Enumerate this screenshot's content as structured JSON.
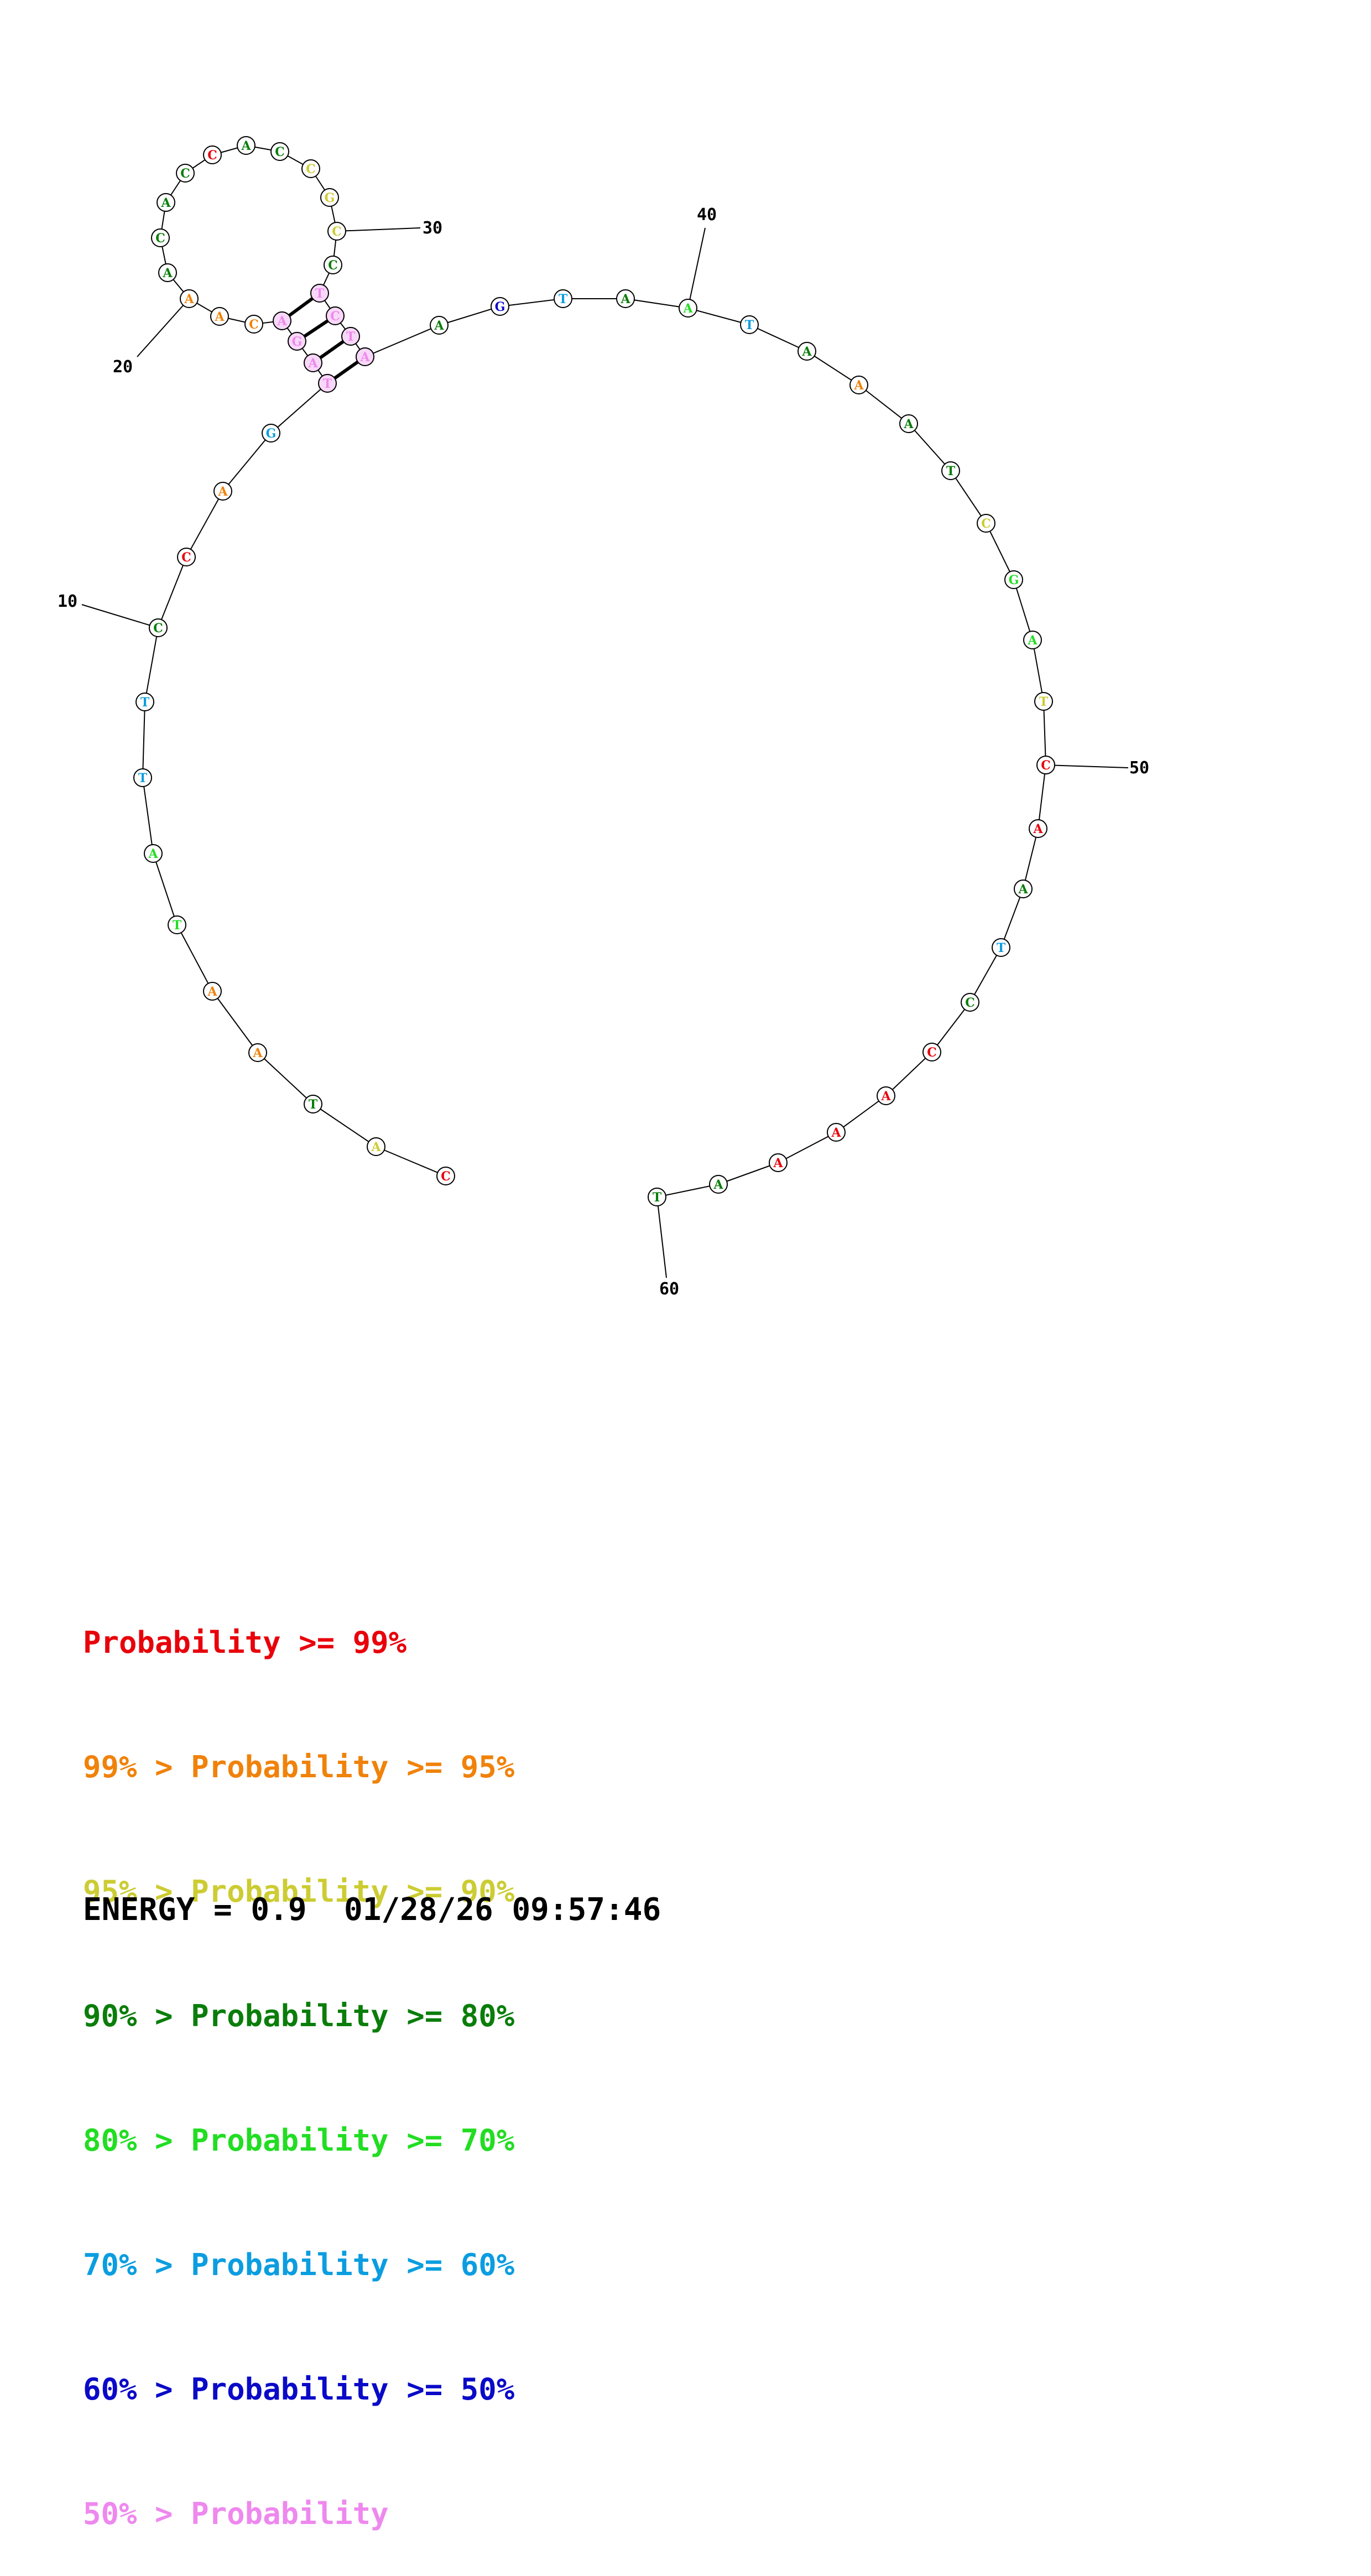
{
  "colors": {
    "red": "#e8000b",
    "orange": "#f0820a",
    "yellow": "#cccc33",
    "darkgreen": "#0a7d0a",
    "green": "#22dd22",
    "cyan": "#0b9de0",
    "blue": "#0a0ac8",
    "pink": "#ee88ee"
  },
  "structure": {
    "nucleotides": [
      {
        "n": 1,
        "base": "C",
        "color": "red"
      },
      {
        "n": 2,
        "base": "A",
        "color": "yellow"
      },
      {
        "n": 3,
        "base": "T",
        "color": "darkgreen"
      },
      {
        "n": 4,
        "base": "A",
        "color": "orange"
      },
      {
        "n": 5,
        "base": "A",
        "color": "orange"
      },
      {
        "n": 6,
        "base": "T",
        "color": "green"
      },
      {
        "n": 7,
        "base": "A",
        "color": "green"
      },
      {
        "n": 8,
        "base": "T",
        "color": "cyan"
      },
      {
        "n": 9,
        "base": "T",
        "color": "cyan"
      },
      {
        "n": 10,
        "base": "C",
        "color": "darkgreen"
      },
      {
        "n": 11,
        "base": "C",
        "color": "red"
      },
      {
        "n": 12,
        "base": "A",
        "color": "orange"
      },
      {
        "n": 13,
        "base": "G",
        "color": "cyan"
      },
      {
        "n": 14,
        "base": "T",
        "color": "pink"
      },
      {
        "n": 15,
        "base": "A",
        "color": "pink"
      },
      {
        "n": 16,
        "base": "G",
        "color": "pink"
      },
      {
        "n": 17,
        "base": "A",
        "color": "pink"
      },
      {
        "n": 18,
        "base": "C",
        "color": "orange"
      },
      {
        "n": 19,
        "base": "A",
        "color": "orange"
      },
      {
        "n": 20,
        "base": "A",
        "color": "orange"
      },
      {
        "n": 21,
        "base": "A",
        "color": "darkgreen"
      },
      {
        "n": 22,
        "base": "C",
        "color": "darkgreen"
      },
      {
        "n": 23,
        "base": "A",
        "color": "darkgreen"
      },
      {
        "n": 24,
        "base": "C",
        "color": "darkgreen"
      },
      {
        "n": 25,
        "base": "C",
        "color": "red"
      },
      {
        "n": 26,
        "base": "A",
        "color": "darkgreen"
      },
      {
        "n": 27,
        "base": "C",
        "color": "darkgreen"
      },
      {
        "n": 28,
        "base": "C",
        "color": "yellow"
      },
      {
        "n": 29,
        "base": "G",
        "color": "yellow"
      },
      {
        "n": 30,
        "base": "C",
        "color": "yellow"
      },
      {
        "n": 31,
        "base": "C",
        "color": "darkgreen"
      },
      {
        "n": 32,
        "base": "T",
        "color": "pink"
      },
      {
        "n": 33,
        "base": "C",
        "color": "pink"
      },
      {
        "n": 34,
        "base": "T",
        "color": "pink"
      },
      {
        "n": 35,
        "base": "A",
        "color": "pink"
      },
      {
        "n": 36,
        "base": "A",
        "color": "darkgreen"
      },
      {
        "n": 37,
        "base": "G",
        "color": "blue"
      },
      {
        "n": 38,
        "base": "T",
        "color": "cyan"
      },
      {
        "n": 39,
        "base": "A",
        "color": "darkgreen"
      },
      {
        "n": 40,
        "base": "A",
        "color": "green"
      },
      {
        "n": 41,
        "base": "T",
        "color": "cyan"
      },
      {
        "n": 42,
        "base": "A",
        "color": "darkgreen"
      },
      {
        "n": 43,
        "base": "A",
        "color": "orange"
      },
      {
        "n": 44,
        "base": "A",
        "color": "darkgreen"
      },
      {
        "n": 45,
        "base": "T",
        "color": "darkgreen"
      },
      {
        "n": 46,
        "base": "C",
        "color": "yellow"
      },
      {
        "n": 47,
        "base": "G",
        "color": "green"
      },
      {
        "n": 48,
        "base": "A",
        "color": "green"
      },
      {
        "n": 49,
        "base": "T",
        "color": "yellow"
      },
      {
        "n": 50,
        "base": "C",
        "color": "red"
      },
      {
        "n": 51,
        "base": "A",
        "color": "red"
      },
      {
        "n": 52,
        "base": "A",
        "color": "darkgreen"
      },
      {
        "n": 53,
        "base": "T",
        "color": "cyan"
      },
      {
        "n": 54,
        "base": "C",
        "color": "darkgreen"
      },
      {
        "n": 55,
        "base": "C",
        "color": "red"
      },
      {
        "n": 56,
        "base": "A",
        "color": "red"
      },
      {
        "n": 57,
        "base": "A",
        "color": "red"
      },
      {
        "n": 58,
        "base": "A",
        "color": "red"
      },
      {
        "n": 59,
        "base": "A",
        "color": "darkgreen"
      },
      {
        "n": 60,
        "base": "T",
        "color": "darkgreen"
      }
    ],
    "pairs": [
      [
        14,
        35
      ],
      [
        15,
        34
      ],
      [
        16,
        33
      ],
      [
        17,
        32
      ]
    ],
    "tick_labels": [
      {
        "n": 10,
        "text": "10"
      },
      {
        "n": 20,
        "text": "20"
      },
      {
        "n": 30,
        "text": "30"
      },
      {
        "n": 40,
        "text": "40"
      },
      {
        "n": 50,
        "text": "50"
      },
      {
        "n": 60,
        "text": "60"
      }
    ]
  },
  "legend": {
    "rows": [
      {
        "prefix": "",
        "text": "Probability >= 99%",
        "color": "red"
      },
      {
        "prefix": "99% > ",
        "text": "Probability >= 95%",
        "color": "orange"
      },
      {
        "prefix": "95% > ",
        "text": "Probability >= 90%",
        "color": "yellow"
      },
      {
        "prefix": "90% > ",
        "text": "Probability >= 80%",
        "color": "darkgreen"
      },
      {
        "prefix": "80% > ",
        "text": "Probability >= 70%",
        "color": "green"
      },
      {
        "prefix": "70% > ",
        "text": "Probability >= 60%",
        "color": "cyan"
      },
      {
        "prefix": "60% > ",
        "text": "Probability >= 50%",
        "color": "blue"
      },
      {
        "prefix": "50% > ",
        "text": "Probability",
        "color": "pink"
      }
    ]
  },
  "footer": {
    "energy": "ENERGY = 0.9",
    "timestamp": "01/28/26 09:57:46"
  }
}
